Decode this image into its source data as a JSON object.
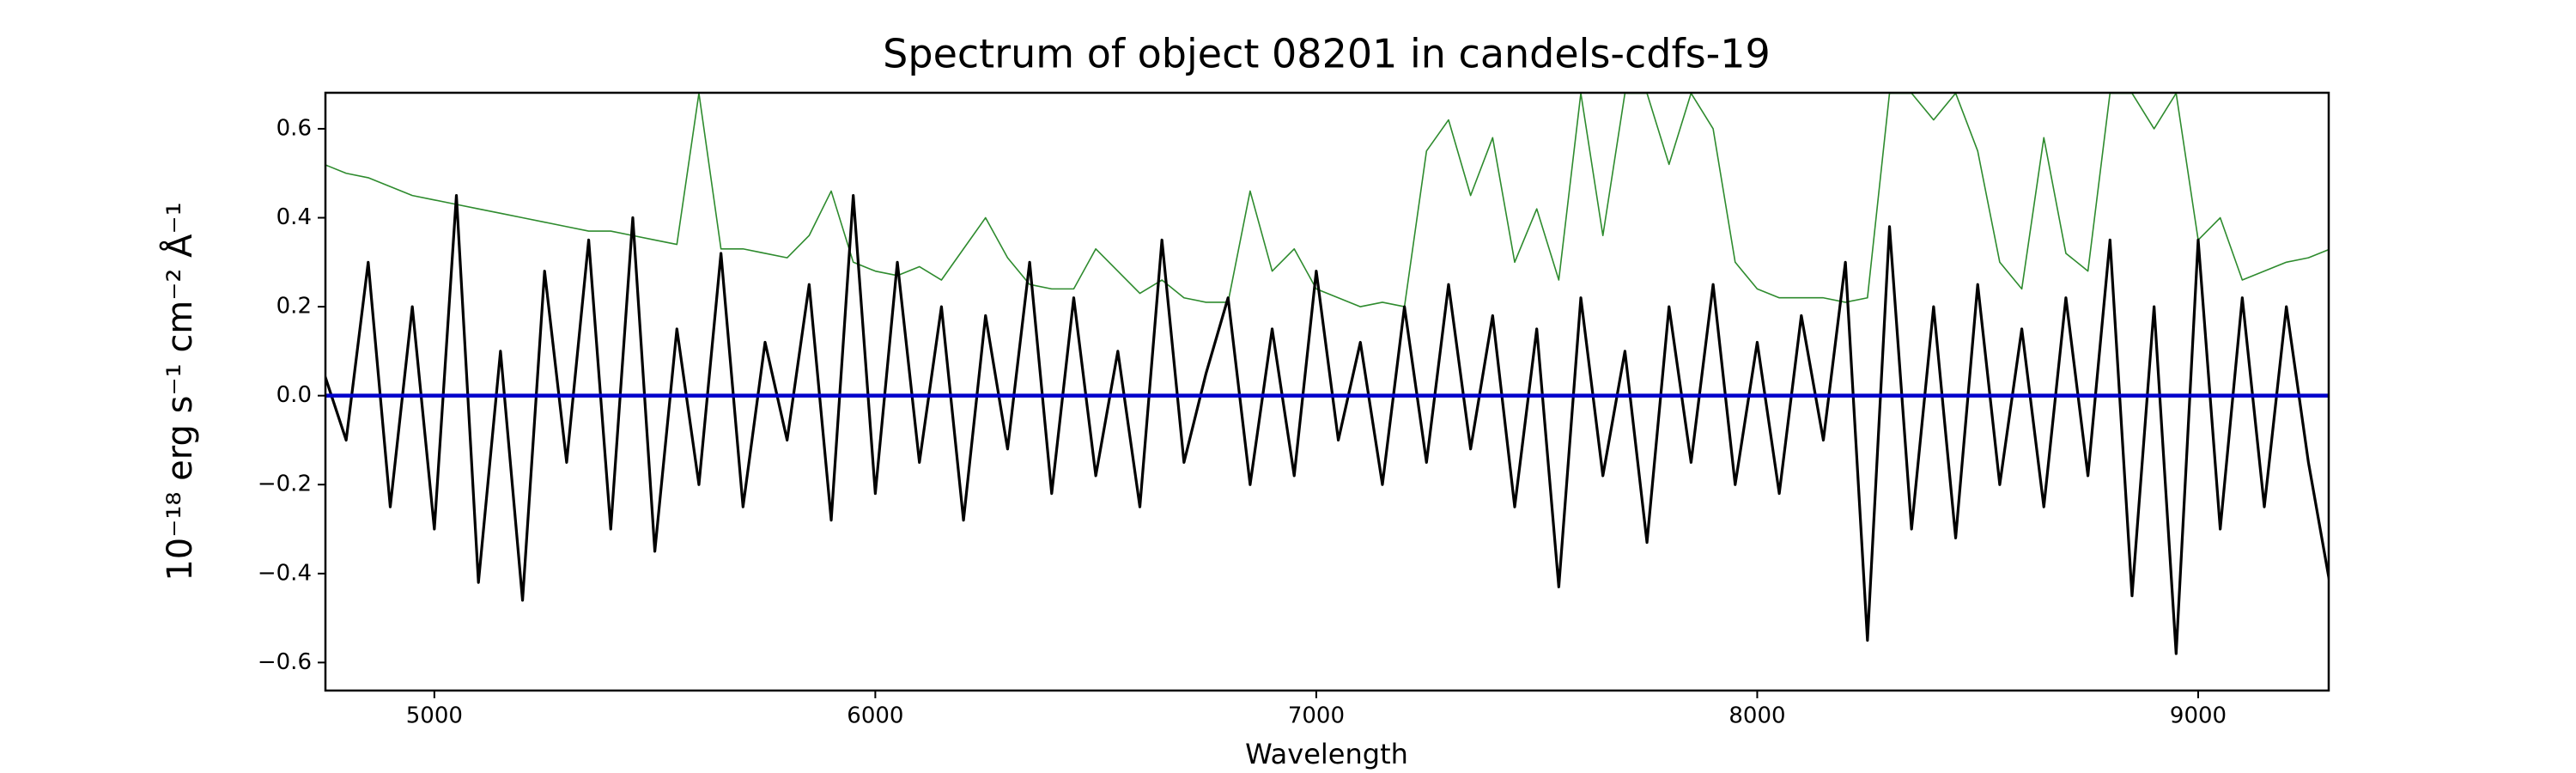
{
  "chart_data": {
    "type": "line",
    "title": "Spectrum of object 08201 in candels-cdfs-19",
    "xlabel": "Wavelength",
    "ylabel": "10⁻¹⁸ erg s⁻¹ cm⁻² Å⁻¹",
    "xlim": [
      4753,
      9296
    ],
    "ylim": [
      -0.663,
      0.681
    ],
    "xticks": [
      5000,
      6000,
      7000,
      8000,
      9000
    ],
    "yticks": [
      {
        "value": -0.6,
        "label": "−0.6"
      },
      {
        "value": -0.4,
        "label": "−0.4"
      },
      {
        "value": -0.2,
        "label": "−0.2"
      },
      {
        "value": 0.0,
        "label": "0.0"
      },
      0.2,
      0.4,
      0.6
    ],
    "x": [
      4750,
      4800,
      4850,
      4900,
      4950,
      5000,
      5050,
      5100,
      5150,
      5200,
      5250,
      5300,
      5350,
      5400,
      5450,
      5500,
      5550,
      5600,
      5650,
      5700,
      5750,
      5800,
      5850,
      5900,
      5950,
      6000,
      6050,
      6100,
      6150,
      6200,
      6250,
      6300,
      6350,
      6400,
      6450,
      6500,
      6550,
      6600,
      6650,
      6700,
      6750,
      6800,
      6850,
      6900,
      6950,
      7000,
      7050,
      7100,
      7150,
      7200,
      7250,
      7300,
      7350,
      7400,
      7450,
      7500,
      7550,
      7600,
      7650,
      7700,
      7750,
      7800,
      7850,
      7900,
      7950,
      8000,
      8050,
      8100,
      8150,
      8200,
      8250,
      8300,
      8350,
      8400,
      8450,
      8500,
      8550,
      8600,
      8650,
      8700,
      8750,
      8800,
      8850,
      8900,
      8950,
      9000,
      9050,
      9100,
      9150,
      9200,
      9250,
      9300
    ],
    "series": [
      {
        "color": "#2e8b2e",
        "width": 1.6,
        "values": [
          0.52,
          0.5,
          0.49,
          0.47,
          0.45,
          0.44,
          0.43,
          0.42,
          0.41,
          0.4,
          0.39,
          0.38,
          0.37,
          0.37,
          0.36,
          0.35,
          0.34,
          0.68,
          0.33,
          0.33,
          0.32,
          0.31,
          0.36,
          0.46,
          0.3,
          0.28,
          0.27,
          0.29,
          0.26,
          0.33,
          0.4,
          0.31,
          0.25,
          0.24,
          0.24,
          0.33,
          0.28,
          0.23,
          0.26,
          0.22,
          0.21,
          0.21,
          0.46,
          0.28,
          0.33,
          0.24,
          0.22,
          0.2,
          0.21,
          0.2,
          0.55,
          0.62,
          0.45,
          0.58,
          0.3,
          0.42,
          0.26,
          0.68,
          0.36,
          0.68,
          0.68,
          0.52,
          0.68,
          0.6,
          0.3,
          0.24,
          0.22,
          0.22,
          0.22,
          0.21,
          0.22,
          0.68,
          0.68,
          0.62,
          0.68,
          0.55,
          0.3,
          0.24,
          0.58,
          0.32,
          0.28,
          0.68,
          0.68,
          0.6,
          0.68,
          0.35,
          0.4,
          0.26,
          0.28,
          0.3,
          0.31,
          0.33
        ]
      },
      {
        "color": "#000000",
        "width": 3.2,
        "values": [
          0.05,
          -0.1,
          0.3,
          -0.25,
          0.2,
          -0.3,
          0.45,
          -0.42,
          0.1,
          -0.46,
          0.28,
          -0.15,
          0.35,
          -0.3,
          0.4,
          -0.35,
          0.15,
          -0.2,
          0.32,
          -0.25,
          0.12,
          -0.1,
          0.25,
          -0.28,
          0.45,
          -0.22,
          0.3,
          -0.15,
          0.2,
          -0.28,
          0.18,
          -0.12,
          0.3,
          -0.22,
          0.22,
          -0.18,
          0.1,
          -0.25,
          0.35,
          -0.15,
          0.05,
          0.22,
          -0.2,
          0.15,
          -0.18,
          0.28,
          -0.1,
          0.12,
          -0.2,
          0.2,
          -0.15,
          0.25,
          -0.12,
          0.18,
          -0.25,
          0.15,
          -0.43,
          0.22,
          -0.18,
          0.1,
          -0.33,
          0.2,
          -0.15,
          0.25,
          -0.2,
          0.12,
          -0.22,
          0.18,
          -0.1,
          0.3,
          -0.55,
          0.38,
          -0.3,
          0.2,
          -0.32,
          0.25,
          -0.2,
          0.15,
          -0.25,
          0.22,
          -0.18,
          0.35,
          -0.45,
          0.2,
          -0.58,
          0.35,
          -0.3,
          0.22,
          -0.25,
          0.2,
          -0.15,
          -0.43
        ]
      },
      {
        "color": "#0000cc",
        "width": 4.5,
        "x": [
          4750,
          9300
        ],
        "values": [
          0,
          0
        ]
      }
    ]
  }
}
